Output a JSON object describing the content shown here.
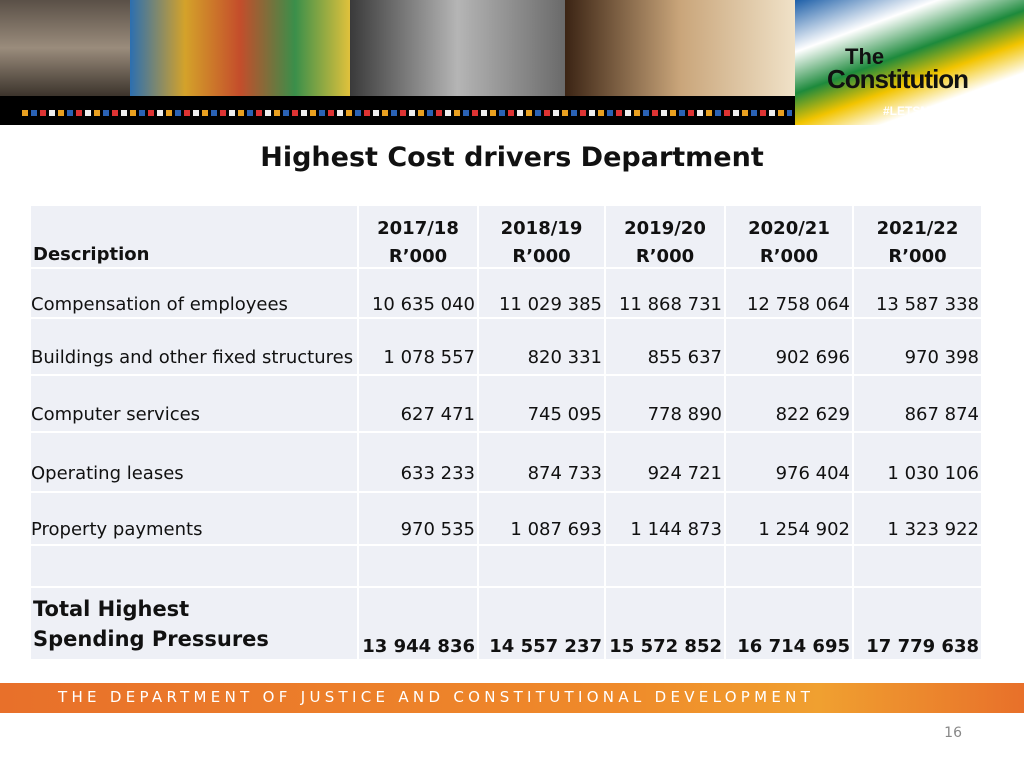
{
  "banner": {
    "logo_line1": "The",
    "logo_line2": "Constitution",
    "hashtag": "#LETSMAKEITREAL"
  },
  "title": "Highest Cost drivers Department",
  "table": {
    "header": [
      "Description",
      {
        "year": "2017/18",
        "unit": "R’000"
      },
      {
        "year": "2018/19",
        "unit": "R’000"
      },
      {
        "year": "2019/20",
        "unit": "R’000"
      },
      {
        "year": "2020/21",
        "unit": "R’000"
      },
      {
        "year": "2021/22",
        "unit": "R’000"
      }
    ],
    "rows": [
      [
        "Compensation of employees",
        "10 635 040",
        "11 029 385",
        "11 868 731",
        "12 758 064",
        "13 587 338"
      ],
      [
        "Buildings and other fixed structures",
        "1 078 557",
        "820 331",
        "855 637",
        "902 696",
        "970 398"
      ],
      [
        "Computer services",
        "627 471",
        "745 095",
        "778 890",
        "822 629",
        "867 874"
      ],
      [
        "Operating leases",
        "633 233",
        "874 733",
        "924 721",
        "976 404",
        "1 030 106"
      ],
      [
        "Property payments",
        "970 535",
        "1 087 693",
        "1 144 873",
        "1 254 902",
        "1 323 922"
      ]
    ],
    "total": [
      "Total Highest Spending Pressures",
      "13 944 836",
      "14 557 237",
      "15 572 852",
      "16 714 695",
      "17 779 638"
    ]
  },
  "footer": "THE DEPARTMENT OF JUSTICE AND CONSTITUTIONAL DEVELOPMENT",
  "page_number": "16"
}
